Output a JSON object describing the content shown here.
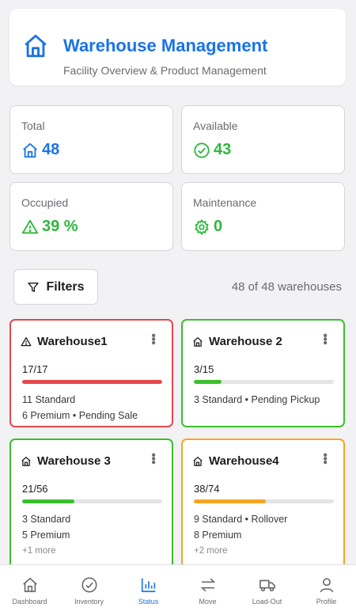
{
  "header": {
    "title": "Warehouse Management",
    "subtitle": "Facility Overview & Product Management",
    "icon": "home-icon"
  },
  "stats": [
    {
      "label": "Total",
      "value": "48",
      "icon": "home-icon",
      "color": "#1a73e8"
    },
    {
      "label": "Available",
      "value": "43",
      "icon": "check-circle-icon",
      "color": "#2db83d"
    },
    {
      "label": "Occupied",
      "value": "39 %",
      "icon": "warning-icon",
      "color": "#2db83d"
    },
    {
      "label": "Maintenance",
      "value": "0",
      "icon": "gear-icon",
      "color": "#2db83d"
    }
  ],
  "filters": {
    "label": "Filters",
    "icon": "filter-icon"
  },
  "count_text": "48 of 48 warehouses",
  "warehouses": [
    {
      "name": "Warehouse1",
      "capacity": "17/17",
      "fill": 1.0,
      "status_color": "#e5484d",
      "icon": "warning-icon",
      "lines": [
        "11 Standard",
        "6 Premium • Pending Sale"
      ],
      "extra": ""
    },
    {
      "name": "Warehouse 2",
      "capacity": "3/15",
      "fill": 0.2,
      "status_color": "#3cbf2f",
      "icon": "home-icon",
      "lines": [
        "3 Standard • Pending Pickup"
      ],
      "extra": ""
    },
    {
      "name": "Warehouse 3",
      "capacity": "21/56",
      "fill": 0.375,
      "status_color": "#3cbf2f",
      "icon": "home-icon",
      "lines": [
        "3 Standard",
        "5 Premium"
      ],
      "extra": "+1 more"
    },
    {
      "name": "Warehouse4",
      "capacity": "38/74",
      "fill": 0.514,
      "status_color": "#f5a623",
      "icon": "home-icon",
      "lines": [
        "9 Standard • Rollover",
        "8 Premium"
      ],
      "extra": "+2 more"
    }
  ],
  "nav": [
    {
      "label": "Dashboard",
      "icon": "home-icon",
      "active": false
    },
    {
      "label": "Inventory",
      "icon": "check-circle-icon",
      "active": false
    },
    {
      "label": "Status",
      "icon": "bar-chart-icon",
      "active": true
    },
    {
      "label": "Move",
      "icon": "swap-arrows-icon",
      "active": false
    },
    {
      "label": "Load-Out",
      "icon": "truck-icon",
      "active": false
    },
    {
      "label": "Profile",
      "icon": "person-icon",
      "active": false
    }
  ]
}
